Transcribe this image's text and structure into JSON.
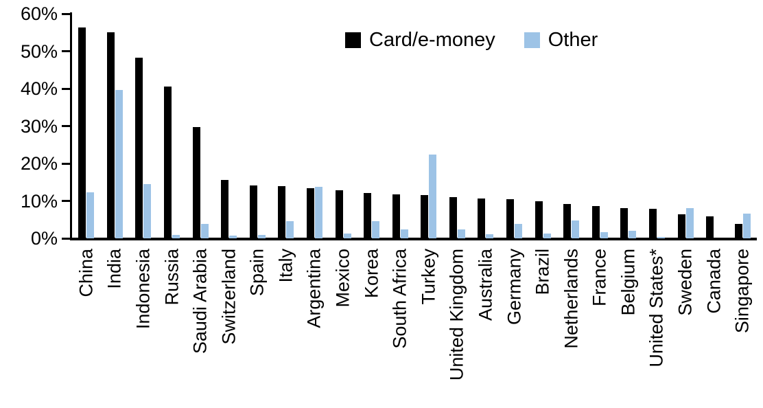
{
  "chart_data": {
    "type": "bar",
    "title": "",
    "xlabel": "",
    "ylabel": "",
    "ylim": [
      0,
      60
    ],
    "yticks": [
      "0%",
      "10%",
      "20%",
      "30%",
      "40%",
      "50%",
      "60%"
    ],
    "grid": false,
    "legend_position": "top-center",
    "legend": [
      "Card/e-money",
      "Other"
    ],
    "categories": [
      "China",
      "India",
      "Indonesia",
      "Russia",
      "Saudi Arabia",
      "Switzerland",
      "Spain",
      "Italy",
      "Argentina",
      "Mexico",
      "Korea",
      "South Africa",
      "Turkey",
      "United Kingdom",
      "Australia",
      "Germany",
      "Brazil",
      "Netherlands",
      "France",
      "Belgium",
      "United States*",
      "Sweden",
      "Canada",
      "Singapore"
    ],
    "series": [
      {
        "name": "Card/e-money",
        "color": "#000000",
        "values": [
          56.3,
          55.0,
          48.2,
          40.5,
          29.7,
          15.6,
          14.2,
          14.0,
          13.4,
          12.9,
          12.2,
          11.8,
          11.5,
          11.0,
          10.7,
          10.5,
          9.9,
          9.2,
          8.6,
          8.1,
          7.9,
          6.5,
          5.9,
          3.9
        ]
      },
      {
        "name": "Other",
        "color": "#9DC3E6",
        "values": [
          12.3,
          39.6,
          14.5,
          1.0,
          3.9,
          0.7,
          1.0,
          4.6,
          13.8,
          1.3,
          4.6,
          2.4,
          22.4,
          2.3,
          1.1,
          3.9,
          1.2,
          4.8,
          1.6,
          2.1,
          0.3,
          8.0,
          0.0,
          6.6
        ]
      }
    ],
    "axis_color": "#000000"
  }
}
